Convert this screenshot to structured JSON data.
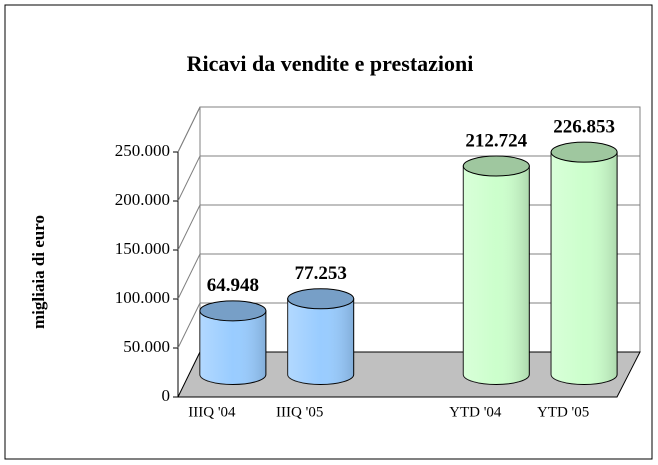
{
  "chart_data": {
    "type": "bar3d",
    "title": "Ricavi da vendite e prestazioni",
    "y_label": "migliaia di euro",
    "categories": [
      "IIIQ '04",
      "IIIQ '05",
      null,
      "YTD '04",
      "YTD '05"
    ],
    "values": [
      64948,
      77253,
      null,
      212724,
      226853
    ],
    "value_labels": [
      "64.948",
      "77.253",
      null,
      "212.724",
      "226.853"
    ],
    "colors": [
      "#99ccff",
      "#99ccff",
      null,
      "#ccffcc",
      "#ccffcc"
    ],
    "ylim": [
      0,
      250000
    ],
    "yticks": [
      0,
      {
        "value": 50000,
        "label": "50.000"
      },
      {
        "value": 100000,
        "label": "100.000"
      },
      {
        "value": 150000,
        "label": "150.000"
      },
      {
        "value": 200000,
        "label": "200.000"
      },
      {
        "value": 250000,
        "label": "250.000"
      }
    ],
    "grid": true
  }
}
